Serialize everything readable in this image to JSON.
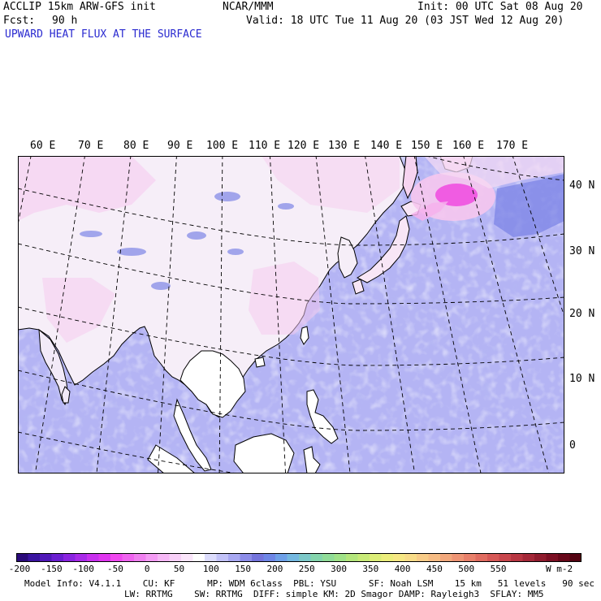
{
  "header": {
    "model": "ACCLIP 15km ARW-GFS init",
    "org": "NCAR/MMM",
    "init": "Init: 00 UTC Sat 08 Aug 20",
    "fcst_label": "Fcst:",
    "fcst_value": "90 h",
    "valid": "Valid: 18 UTC Tue 11 Aug 20 (03 JST Wed 12 Aug 20)",
    "field": "UPWARD HEAT FLUX AT THE SURFACE"
  },
  "map": {
    "lon_labels": [
      "60 E",
      "70 E",
      "80 E",
      "90 E",
      "100 E",
      "110 E",
      "120 E",
      "130 E",
      "140 E",
      "150 E",
      "160 E",
      "170 E"
    ],
    "lat_labels": [
      "40 N",
      "30 N",
      "20 N",
      "10 N",
      "0"
    ],
    "colors": {
      "ocean": "#b4b4f4",
      "land_low": "#f5edf8",
      "land_pink": "#f6c6ee",
      "hot_spot": "#f050e0",
      "coast": "#000000"
    }
  },
  "colorbar": {
    "labels": [
      "-200",
      "-150",
      "-100",
      "-50",
      "0",
      "50",
      "100",
      "150",
      "200",
      "250",
      "300",
      "350",
      "400",
      "450",
      "500",
      "550"
    ],
    "units": "W m-2",
    "colors": [
      "#2a0a7a",
      "#3a14a0",
      "#5018b8",
      "#6a1ed0",
      "#8a24e0",
      "#a82ae8",
      "#c830ee",
      "#e036f0",
      "#f048f0",
      "#f064f0",
      "#f080f0",
      "#f49cf4",
      "#f6b8f6",
      "#f8d0f8",
      "#fbe6fb",
      "#ffffff",
      "#dcdcfc",
      "#c2c2f8",
      "#a8a8f2",
      "#8c8ce8",
      "#7474dc",
      "#6e86e6",
      "#6ea0e8",
      "#74b8e0",
      "#7cc8c8",
      "#84d4ac",
      "#90dc98",
      "#a0e288",
      "#b4e67c",
      "#c8ea78",
      "#dcee78",
      "#ecee7c",
      "#f6e884",
      "#f8dc88",
      "#f8cc88",
      "#f6bc84",
      "#f2a87c",
      "#ee9474",
      "#e8806a",
      "#e06c60",
      "#d65856",
      "#c8464c",
      "#b83642",
      "#a42838",
      "#901c2e",
      "#7c1024",
      "#68081a",
      "#540412"
    ]
  },
  "footer": {
    "line1": "Model Info: V4.1.1    CU: KF      MP: WDM 6class  PBL: YSU      SF: Noah LSM    15 km   51 levels   90 sec",
    "line2": "LW: RRTMG    SW: RRTMG  DIFF: simple KM: 2D Smagor DAMP: Rayleigh3  SFLAY: MM5"
  }
}
